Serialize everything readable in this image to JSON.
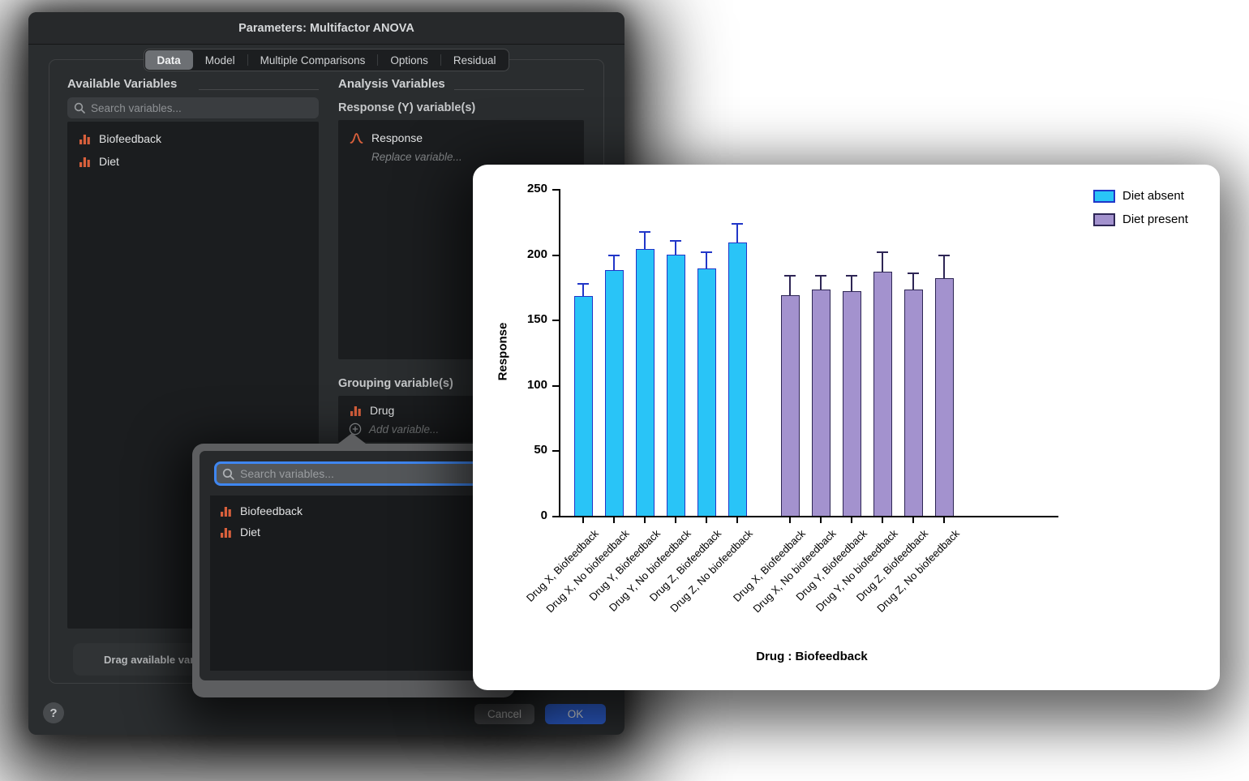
{
  "dialog": {
    "title": "Parameters: Multifactor ANOVA",
    "tabs": [
      {
        "label": "Data",
        "selected": true
      },
      {
        "label": "Model",
        "selected": false
      },
      {
        "label": "Multiple Comparisons",
        "selected": false
      },
      {
        "label": "Options",
        "selected": false
      },
      {
        "label": "Residual",
        "selected": false
      }
    ],
    "available": {
      "header": "Available Variables",
      "search_placeholder": "Search variables...",
      "items": [
        "Biofeedback",
        "Diet"
      ],
      "drop_hint": "Drag available variable"
    },
    "analysis": {
      "header": "Analysis Variables",
      "response_section_label": "Response (Y) variable(s)",
      "response_item": "Response",
      "replace_hint": "Replace variable...",
      "grouping_section_label": "Grouping variable(s)",
      "grouping_item": "Drug",
      "add_hint": "Add variable..."
    },
    "buttons": {
      "help": "?",
      "cancel": "Cancel",
      "ok": "OK"
    }
  },
  "popup": {
    "search_placeholder": "Search variables...",
    "items": [
      "Biofeedback",
      "Diet"
    ]
  },
  "chart_data": {
    "type": "bar",
    "title": "",
    "xlabel": "Drug : Biofeedback",
    "ylabel": "Response",
    "ylim": [
      0,
      250
    ],
    "yticks": [
      0,
      50,
      100,
      150,
      200,
      250
    ],
    "categories": [
      "Drug X, Biofeedback",
      "Drug X, No biofeedback",
      "Drug Y, Biofeedback",
      "Drug Y, No biofeedback",
      "Drug Z, Biofeedback",
      "Drug Z, No biofeedback",
      "Drug X, Biofeedback",
      "Drug X, No biofeedback",
      "Drug Y, Biofeedback",
      "Drug Y, No biofeedback",
      "Drug Z, Biofeedback",
      "Drug Z, No biofeedback"
    ],
    "series": [
      {
        "name": "Diet absent",
        "values": [
          168,
          188,
          204,
          200,
          189,
          209
        ],
        "errors_upper": [
          10,
          12,
          14,
          11,
          13,
          15
        ]
      },
      {
        "name": "Diet present",
        "values": [
          169,
          173,
          172,
          187,
          173,
          182
        ],
        "errors_upper": [
          15,
          11,
          12,
          15,
          13,
          18
        ]
      }
    ],
    "legend_position": "top-right",
    "grid": false
  },
  "colors": {
    "absent_fill": "#29c4f7",
    "absent_edge": "#2136c8",
    "present_fill": "#a392ce",
    "present_edge": "#2e2655",
    "accent_orange": "#d9603c",
    "ok_blue": "#2f63d8",
    "focus_ring": "#3f86f0"
  }
}
